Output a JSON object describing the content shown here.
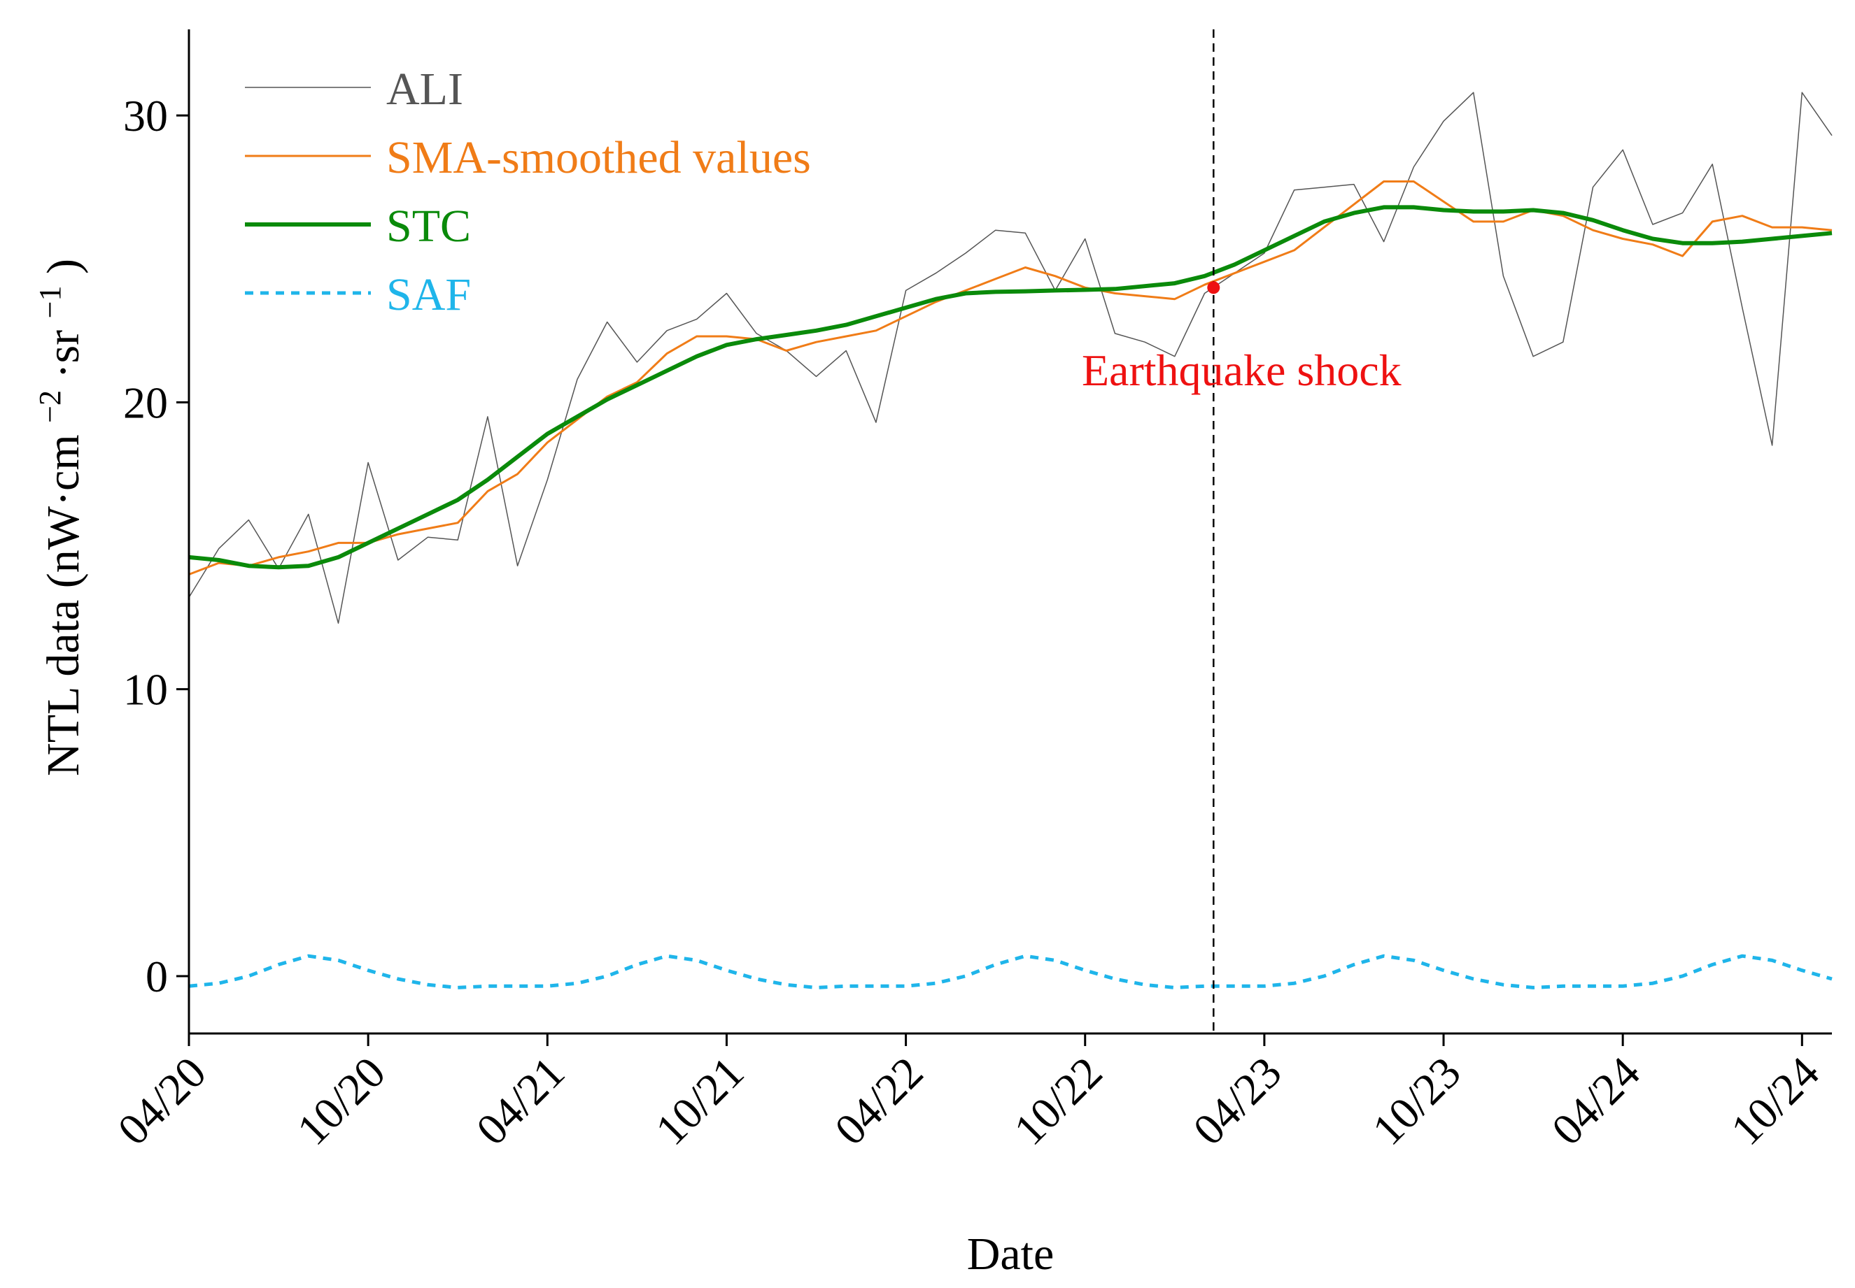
{
  "chart_data": {
    "type": "line",
    "xlabel": "Date",
    "ylabel": "NTL data (nW·cm⁻²·sr⁻¹)",
    "ylabel_parts": {
      "main": "NTL data (nW·cm",
      "sup1": "−2",
      "mid": "·sr",
      "sup2": "−1",
      "end": ")"
    },
    "xlim": [
      0,
      55
    ],
    "ylim": [
      -2,
      33
    ],
    "x_units": "months since 04/2020",
    "x_ticks": [
      {
        "value": 0,
        "label": "04/20"
      },
      {
        "value": 6,
        "label": "10/20"
      },
      {
        "value": 12,
        "label": "04/21"
      },
      {
        "value": 18,
        "label": "10/21"
      },
      {
        "value": 24,
        "label": "04/22"
      },
      {
        "value": 30,
        "label": "10/22"
      },
      {
        "value": 36,
        "label": "04/23"
      },
      {
        "value": 42,
        "label": "10/23"
      },
      {
        "value": 48,
        "label": "04/24"
      },
      {
        "value": 54,
        "label": "10/24"
      }
    ],
    "y_ticks": [
      {
        "value": 0,
        "label": "0"
      },
      {
        "value": 10,
        "label": "10"
      },
      {
        "value": 20,
        "label": "20"
      },
      {
        "value": 30,
        "label": "30"
      }
    ],
    "legend_position": "top-left",
    "series": [
      {
        "name": "ALI",
        "color": "#555555",
        "style": "solid-thin",
        "x": [
          0,
          1,
          2,
          3,
          4,
          5,
          6,
          7,
          8,
          9,
          10,
          11,
          12,
          13,
          14,
          15,
          16,
          17,
          18,
          19,
          20,
          21,
          22,
          23,
          24,
          25,
          26,
          27,
          28,
          29,
          30,
          31,
          32,
          33,
          34,
          35,
          36,
          37,
          38,
          39,
          40,
          41,
          42,
          43,
          44,
          45,
          46,
          47,
          48,
          49,
          50,
          51,
          52,
          53,
          54,
          55
        ],
        "values": [
          13.2,
          14.9,
          15.9,
          14.2,
          16.1,
          12.3,
          17.9,
          14.5,
          15.3,
          15.2,
          19.5,
          14.3,
          17.3,
          20.8,
          22.8,
          21.4,
          22.5,
          22.9,
          23.8,
          22.4,
          21.8,
          20.9,
          21.8,
          19.3,
          23.9,
          24.5,
          25.2,
          26.0,
          25.9,
          23.9,
          25.7,
          22.4,
          22.1,
          21.6,
          23.8,
          24.5,
          25.2,
          27.4,
          27.5,
          27.6,
          25.6,
          28.2,
          29.8,
          30.8,
          24.4,
          21.6,
          22.1,
          27.5,
          28.8,
          26.2,
          26.6,
          28.3,
          23.3,
          18.5,
          30.8,
          29.3
        ]
      },
      {
        "name": "SMA-smoothed values",
        "color": "#f07c17",
        "style": "solid",
        "x": [
          0,
          1,
          2,
          3,
          4,
          5,
          6,
          7,
          8,
          9,
          10,
          11,
          12,
          13,
          14,
          15,
          16,
          17,
          18,
          19,
          20,
          21,
          22,
          23,
          24,
          25,
          26,
          27,
          28,
          29,
          30,
          31,
          32,
          33,
          34,
          35,
          36,
          37,
          38,
          39,
          40,
          41,
          42,
          43,
          44,
          45,
          46,
          47,
          48,
          49,
          50,
          51,
          52,
          53,
          54,
          55
        ],
        "values": [
          14.0,
          14.4,
          14.3,
          14.6,
          14.8,
          15.1,
          15.1,
          15.4,
          15.6,
          15.8,
          16.9,
          17.5,
          18.6,
          19.4,
          20.2,
          20.7,
          21.7,
          22.3,
          22.3,
          22.2,
          21.8,
          22.1,
          22.3,
          22.5,
          23.0,
          23.5,
          23.9,
          24.3,
          24.7,
          24.4,
          24.0,
          23.8,
          23.7,
          23.6,
          24.1,
          24.5,
          24.9,
          25.3,
          26.1,
          26.9,
          27.7,
          27.7,
          27.0,
          26.3,
          26.3,
          26.7,
          26.5,
          26.0,
          25.7,
          25.5,
          25.1,
          26.3,
          26.5,
          26.1,
          26.1,
          26.0
        ]
      },
      {
        "name": "STC",
        "color": "#0a8a0a",
        "style": "solid-thick",
        "x": [
          0,
          1,
          2,
          3,
          4,
          5,
          6,
          7,
          8,
          9,
          10,
          11,
          12,
          13,
          14,
          15,
          16,
          17,
          18,
          19,
          20,
          21,
          22,
          23,
          24,
          25,
          26,
          27,
          28,
          29,
          30,
          31,
          32,
          33,
          34,
          35,
          36,
          37,
          38,
          39,
          40,
          41,
          42,
          43,
          44,
          45,
          46,
          47,
          48,
          49,
          50,
          51,
          52,
          53,
          54,
          55
        ],
        "values": [
          14.6,
          14.5,
          14.3,
          14.25,
          14.3,
          14.6,
          15.1,
          15.6,
          16.1,
          16.6,
          17.3,
          18.1,
          18.9,
          19.5,
          20.1,
          20.6,
          21.1,
          21.6,
          22.0,
          22.2,
          22.35,
          22.5,
          22.7,
          23.0,
          23.3,
          23.6,
          23.8,
          23.85,
          23.87,
          23.9,
          23.92,
          23.95,
          24.05,
          24.15,
          24.4,
          24.8,
          25.3,
          25.8,
          26.3,
          26.6,
          26.8,
          26.8,
          26.7,
          26.65,
          26.65,
          26.7,
          26.6,
          26.35,
          26.0,
          25.7,
          25.55,
          25.55,
          25.6,
          25.7,
          25.8,
          25.9
        ]
      },
      {
        "name": "SAF",
        "color": "#1fb5ea",
        "style": "dashed",
        "x": [
          0,
          1,
          2,
          3,
          4,
          5,
          6,
          7,
          8,
          9,
          10,
          11,
          12,
          13,
          14,
          15,
          16,
          17,
          18,
          19,
          20,
          21,
          22,
          23,
          24,
          25,
          26,
          27,
          28,
          29,
          30,
          31,
          32,
          33,
          34,
          35,
          36,
          37,
          38,
          39,
          40,
          41,
          42,
          43,
          44,
          45,
          46,
          47,
          48,
          49,
          50,
          51,
          52,
          53,
          54,
          55
        ],
        "values": [
          -0.35,
          -0.25,
          0.0,
          0.4,
          0.7,
          0.55,
          0.2,
          -0.1,
          -0.3,
          -0.4,
          -0.35,
          -0.35,
          -0.35,
          -0.25,
          0.0,
          0.4,
          0.7,
          0.55,
          0.2,
          -0.1,
          -0.3,
          -0.4,
          -0.35,
          -0.35,
          -0.35,
          -0.25,
          0.0,
          0.4,
          0.7,
          0.55,
          0.2,
          -0.1,
          -0.3,
          -0.4,
          -0.35,
          -0.35,
          -0.35,
          -0.25,
          0.0,
          0.4,
          0.7,
          0.55,
          0.2,
          -0.1,
          -0.3,
          -0.4,
          -0.35,
          -0.35,
          -0.35,
          -0.25,
          0.0,
          0.4,
          0.7,
          0.55,
          0.2,
          -0.1
        ]
      }
    ],
    "event": {
      "label": "Earthquake shock",
      "x": 34.3,
      "y": 24.0,
      "color": "#ee1111"
    }
  }
}
